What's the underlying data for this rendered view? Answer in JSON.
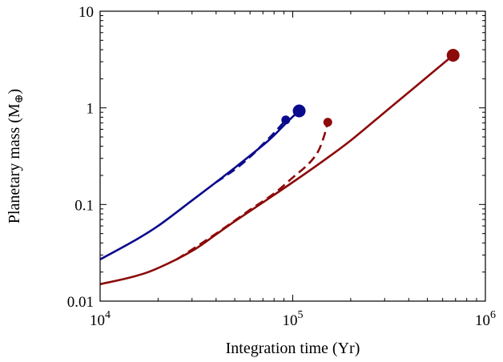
{
  "chart_data": {
    "type": "line",
    "title": "",
    "xlabel": "Integration time (Yr)",
    "ylabel": "Planetary mass (M",
    "ylabel_symbol": "⊕",
    "ylabel_suffix": ")",
    "xscale": "log",
    "yscale": "log",
    "xlim": [
      10000,
      1000000
    ],
    "ylim": [
      0.01,
      10
    ],
    "x_ticks": [
      10000,
      100000,
      1000000
    ],
    "x_tick_labels": [
      {
        "base": "10",
        "exp": "4"
      },
      {
        "base": "10",
        "exp": "5"
      },
      {
        "base": "10",
        "exp": "6"
      }
    ],
    "y_ticks": [
      0.01,
      0.1,
      1,
      10
    ],
    "y_tick_labels": [
      "0.01",
      "0.1",
      "1",
      "10"
    ],
    "grid": false,
    "legend": "none",
    "series": [
      {
        "color": "#0a0a8c",
        "style": "solid",
        "end_marker": "large",
        "x": [
          10000,
          15000,
          20000,
          30000,
          40000,
          50000,
          60000,
          70000,
          80000,
          90000,
          100000,
          108000
        ],
        "y": [
          0.027,
          0.042,
          0.06,
          0.11,
          0.17,
          0.24,
          0.32,
          0.41,
          0.52,
          0.66,
          0.81,
          0.93
        ]
      },
      {
        "color": "#0a0a8c",
        "style": "dashed",
        "end_marker": "small",
        "x": [
          40000,
          50000,
          60000,
          70000,
          80000,
          92000
        ],
        "y": [
          0.17,
          0.23,
          0.31,
          0.42,
          0.55,
          0.75
        ]
      },
      {
        "color": "#8c0a0a",
        "style": "solid",
        "end_marker": "large",
        "x": [
          10000,
          15000,
          20000,
          30000,
          40000,
          50000,
          70000,
          100000,
          150000,
          200000,
          300000,
          400000,
          500000,
          680000
        ],
        "y": [
          0.015,
          0.018,
          0.022,
          0.033,
          0.049,
          0.067,
          0.105,
          0.17,
          0.3,
          0.46,
          0.9,
          1.45,
          2.1,
          3.5
        ]
      },
      {
        "color": "#8c0a0a",
        "style": "dashed",
        "end_marker": "small",
        "x": [
          25000,
          40000,
          60000,
          80000,
          100000,
          120000,
          135000,
          145000,
          152000
        ],
        "y": [
          0.027,
          0.05,
          0.088,
          0.13,
          0.19,
          0.26,
          0.35,
          0.5,
          0.71
        ]
      }
    ]
  }
}
